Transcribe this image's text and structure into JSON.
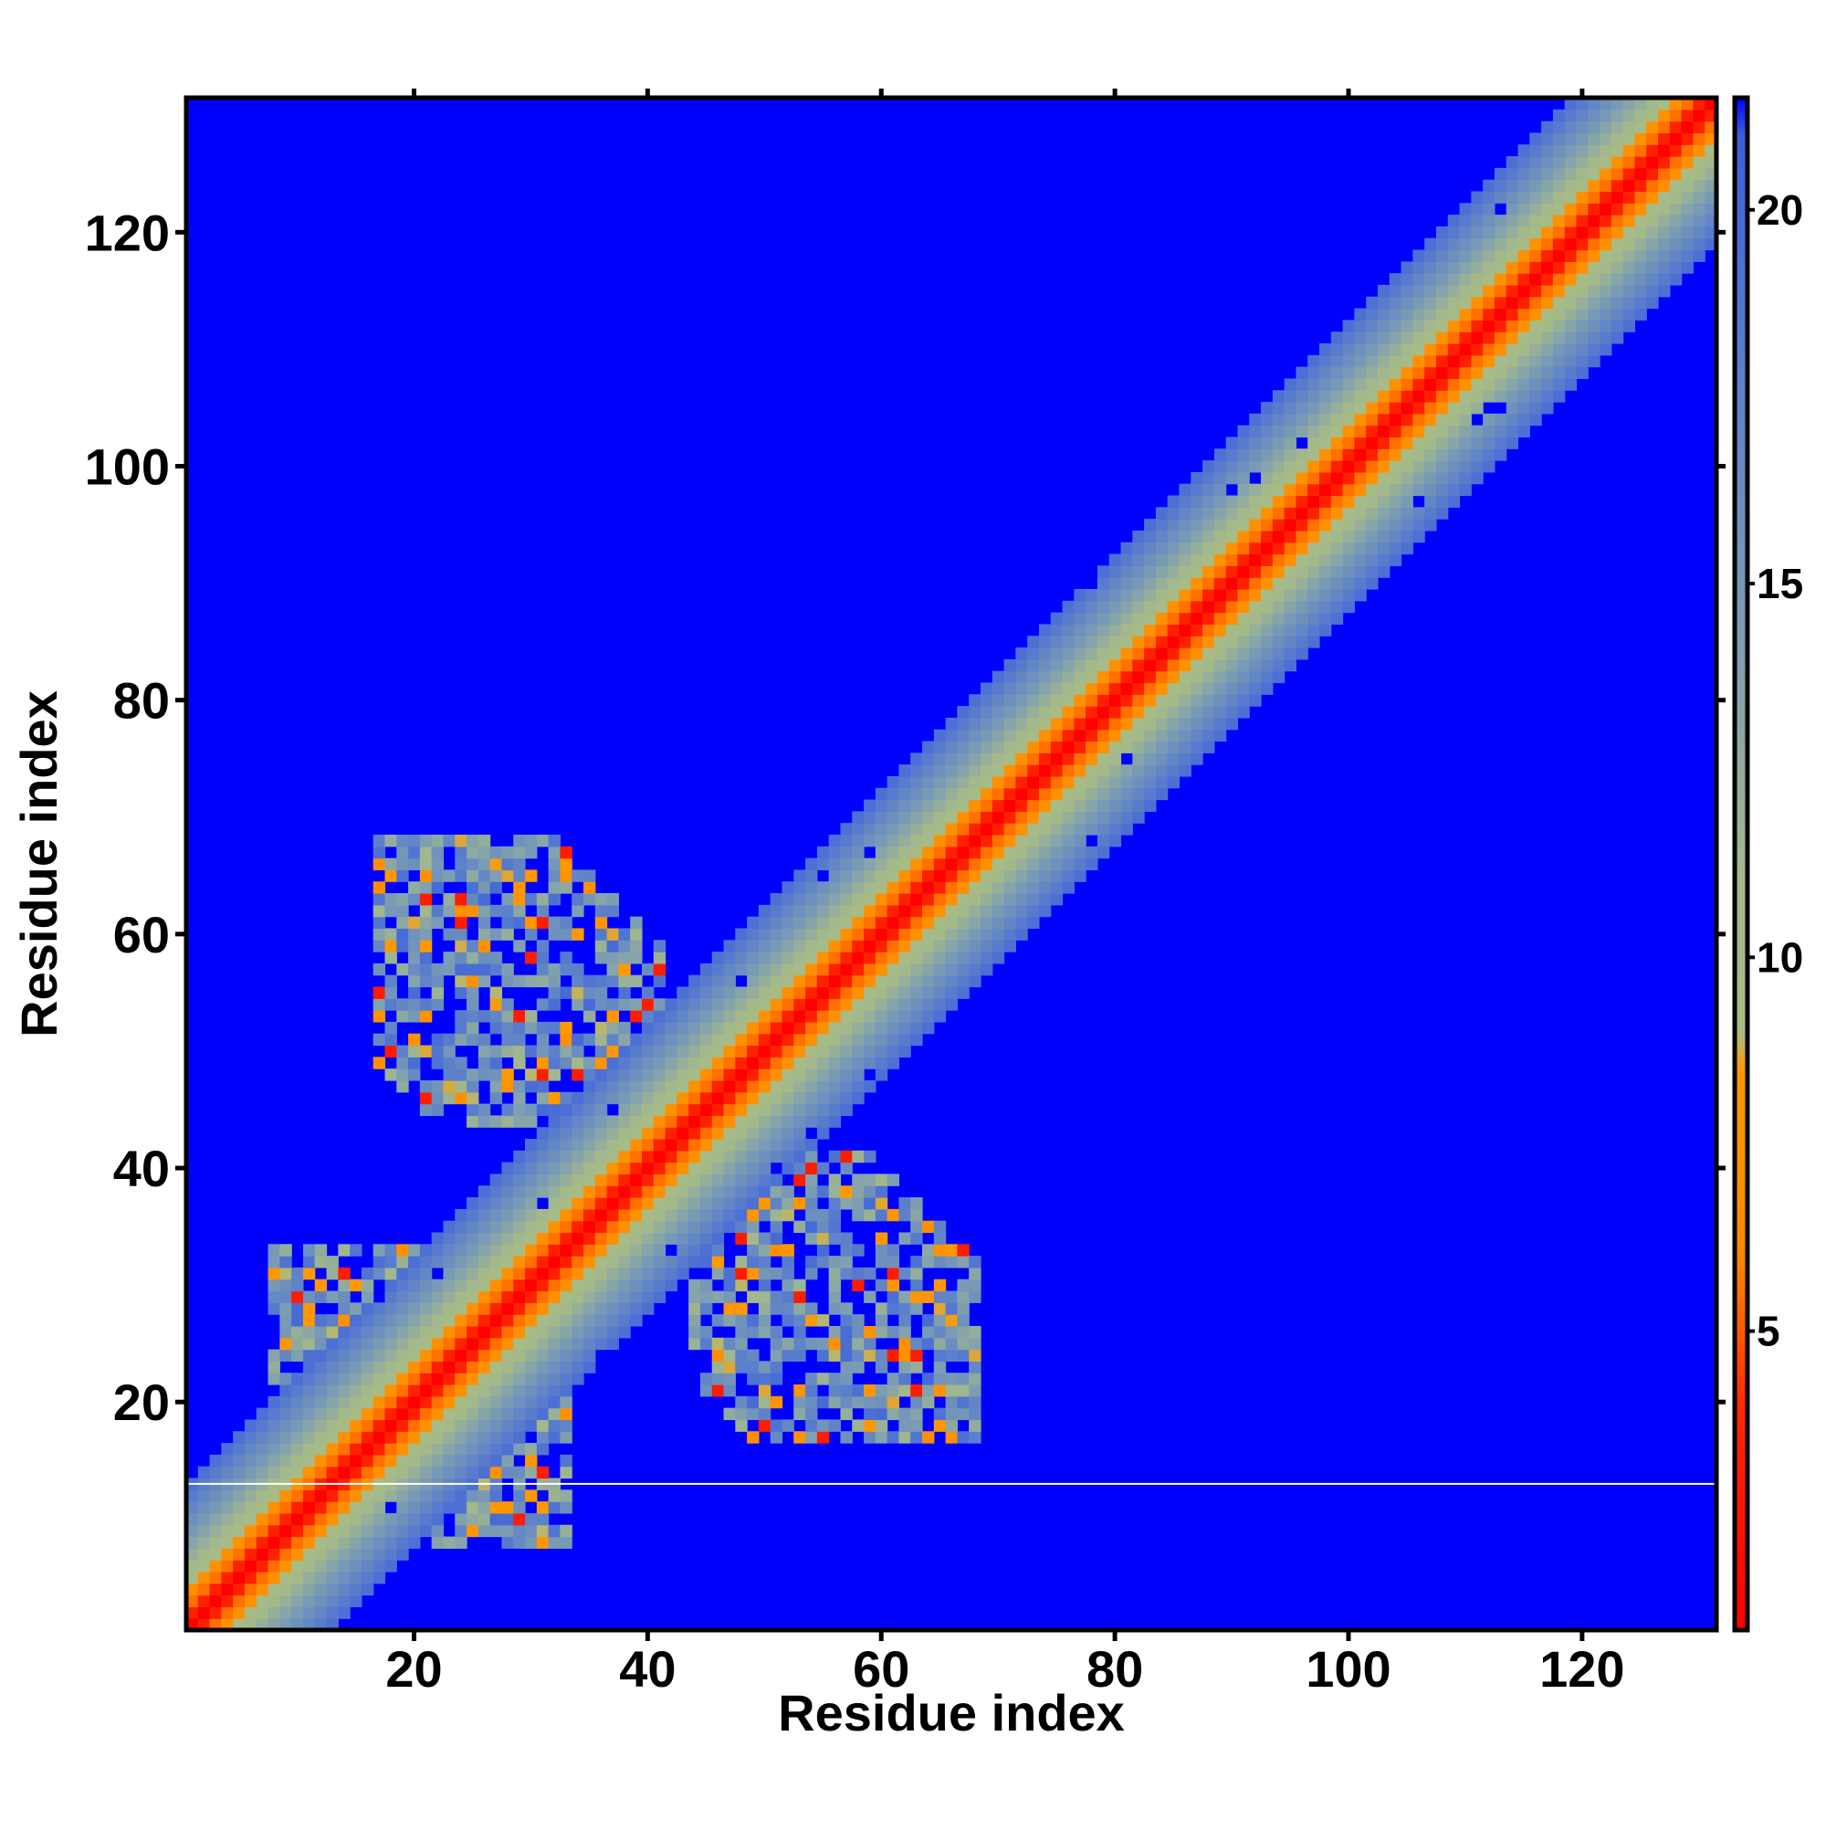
{
  "chart_data": {
    "type": "heatmap",
    "title": "",
    "xlabel": "Residue index",
    "ylabel": "Residue index",
    "xlim": [
      1,
      131
    ],
    "ylim": [
      1,
      131
    ],
    "n_residues": 131,
    "x_ticks": [
      20,
      40,
      60,
      80,
      100,
      120
    ],
    "y_ticks": [
      20,
      40,
      60,
      80,
      100,
      120
    ],
    "x_tick_labels": [
      "20",
      "40",
      "60",
      "80",
      "100",
      "120"
    ],
    "y_tick_labels": [
      "20",
      "40",
      "60",
      "80",
      "100",
      "120"
    ],
    "colorbar": {
      "range": [
        1,
        21.5
      ],
      "ticks": [
        5,
        10,
        15,
        20
      ],
      "tick_labels": [
        "5",
        "10",
        "15",
        "20"
      ],
      "stops": [
        {
          "value": 1,
          "color": "#ff0000"
        },
        {
          "value": 4,
          "color": "#ff2a00"
        },
        {
          "value": 6,
          "color": "#ff8800"
        },
        {
          "value": 8.5,
          "color": "#ff9900"
        },
        {
          "value": 9,
          "color": "#a8bd84"
        },
        {
          "value": 11,
          "color": "#a4b98a"
        },
        {
          "value": 14,
          "color": "#7f9fb1"
        },
        {
          "value": 18,
          "color": "#5a7ecc"
        },
        {
          "value": 21,
          "color": "#3b5fdc"
        },
        {
          "value": 21.5,
          "color": "#0000ff"
        }
      ],
      "background_value_color": "#0000ff"
    },
    "structure": {
      "diagonal": "distance near 1 on the main diagonal, rising to ~20 about 13 residues away, blue beyond",
      "contact_clusters": [
        {
          "x_range": [
            17,
            33
          ],
          "y_range": [
            8,
            30
          ],
          "description": "near-diagonal contact patch below residue 30"
        },
        {
          "x_range": [
            17,
            41
          ],
          "y_range": [
            44,
            68
          ],
          "description": "off-diagonal contact region (upper-left wing)"
        },
        {
          "x_range": [
            44,
            69
          ],
          "y_range": [
            17,
            40
          ],
          "description": "symmetric off-diagonal contact region (lower-right wing)"
        }
      ],
      "gap_row": 13
    }
  }
}
